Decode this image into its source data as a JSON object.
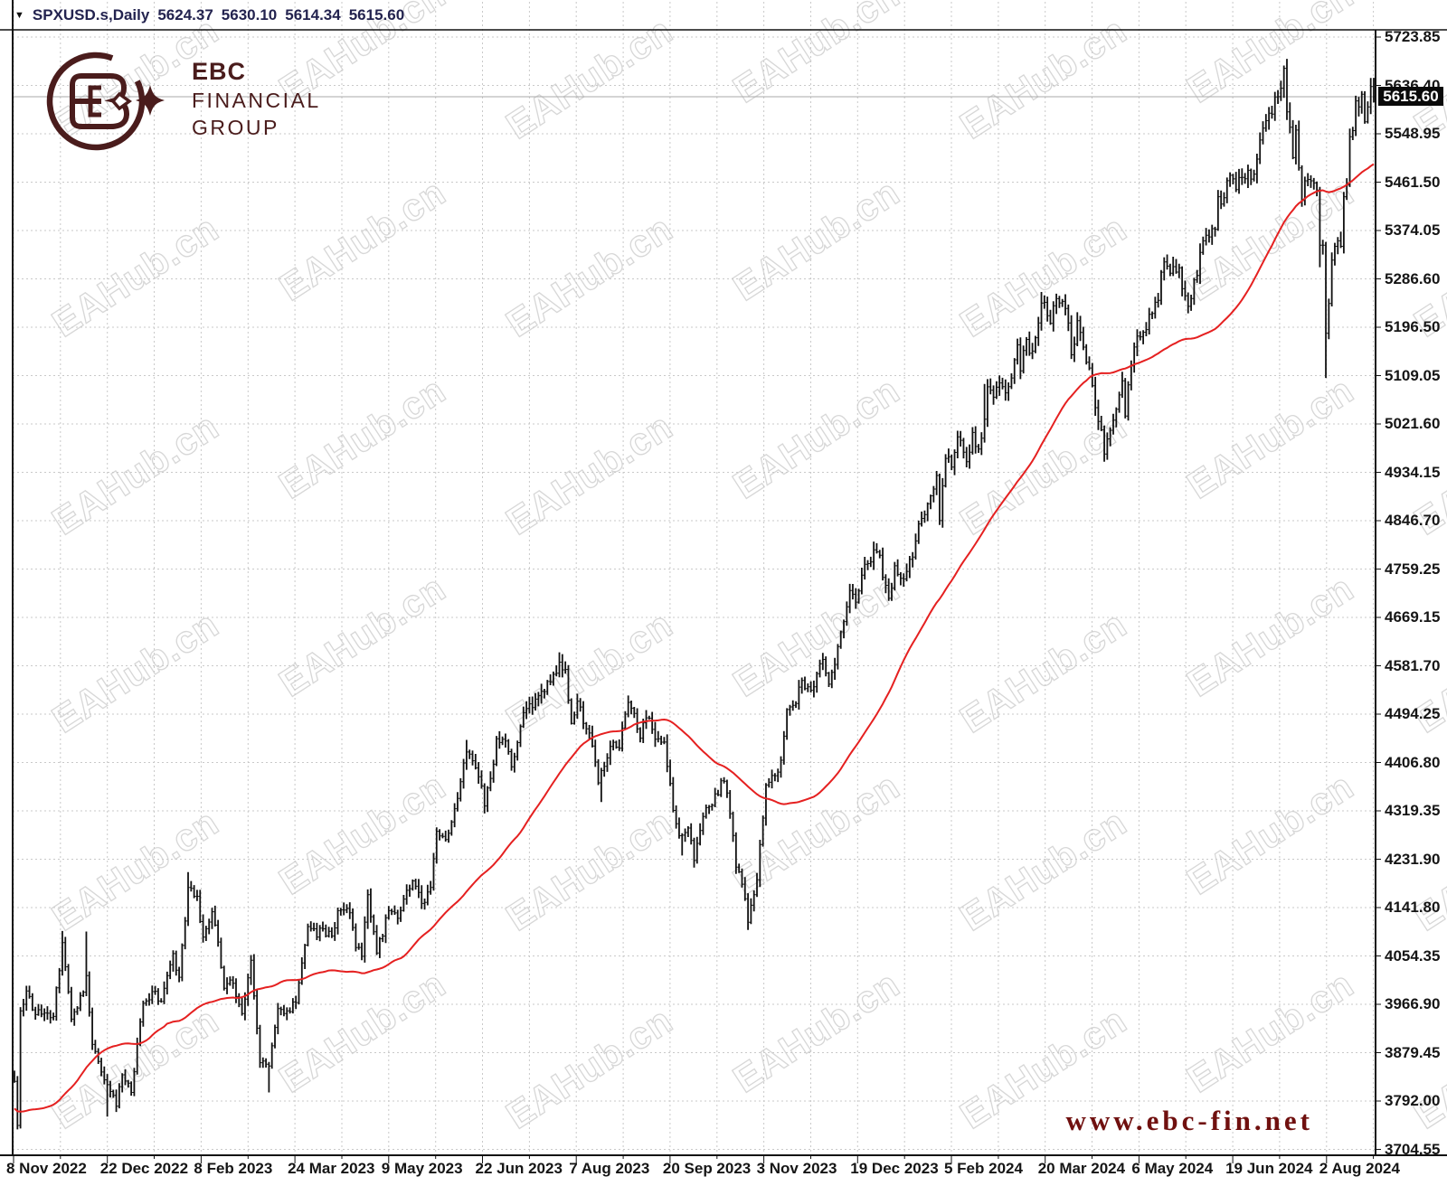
{
  "window": {
    "symbol_period": "SPXUSD.s,Daily",
    "ohlc_readout": {
      "open": "5624.37",
      "high": "5630.10",
      "low": "5614.34",
      "close": "5615.60"
    }
  },
  "branding": {
    "logo_abbr": "EBC",
    "logo_line1": "FINANCIAL",
    "logo_line2": "GROUP",
    "logo_color": "#4a1c1c",
    "website": "www.ebc-fin.net",
    "website_color": "#70100f"
  },
  "watermark": {
    "text": "EAHub.cn",
    "color": "#d7d7d7",
    "angle_deg": -33
  },
  "chart_data": {
    "type": "bar",
    "subtype": "ohlc-bars-daily",
    "title": "SPXUSD.s Daily",
    "bid_price": 5615.6,
    "bid_price_label": "5615.60",
    "bar_color": "#111111",
    "grid_color": "#c9c9c9",
    "bid_line_color": "#a9a9a9",
    "y_axis": {
      "labels": [
        "5723.85",
        "5636.40",
        "5548.95",
        "5461.50",
        "5374.05",
        "5286.60",
        "5196.50",
        "5109.05",
        "5021.60",
        "4934.15",
        "4846.70",
        "4759.25",
        "4669.15",
        "4581.70",
        "4494.25",
        "4406.80",
        "4319.35",
        "4231.90",
        "4141.80",
        "4054.35",
        "3966.90",
        "3879.45",
        "3792.00",
        "3704.55"
      ],
      "top_value": 5723.85,
      "bottom_value": 3704.55
    },
    "x_axis": {
      "labels": [
        "8 Nov 2022",
        "22 Dec 2022",
        "8 Feb 2023",
        "24 Mar 2023",
        "9 May 2023",
        "22 Jun 2023",
        "7 Aug 2023",
        "20 Sep 2023",
        "3 Nov 2023",
        "19 Dec 2023",
        "5 Feb 2024",
        "20 Mar 2024",
        "6 May 2024",
        "19 Jun 2024",
        "2 Aug 2024"
      ],
      "bars_per_tick": 31
    },
    "bars_total": 455,
    "close_anchors": [
      [
        0,
        3828
      ],
      [
        1,
        3748
      ],
      [
        2,
        3956
      ],
      [
        4,
        3992
      ],
      [
        6,
        3958
      ],
      [
        9,
        3950
      ],
      [
        13,
        3946
      ],
      [
        16,
        4080
      ],
      [
        19,
        3941
      ],
      [
        23,
        3990
      ],
      [
        24,
        4020
      ],
      [
        26,
        3895
      ],
      [
        29,
        3845
      ],
      [
        31,
        3822
      ],
      [
        34,
        3783
      ],
      [
        36,
        3840
      ],
      [
        39,
        3808
      ],
      [
        41,
        3895
      ],
      [
        43,
        3970
      ],
      [
        46,
        3991
      ],
      [
        49,
        3973
      ],
      [
        51,
        4020
      ],
      [
        53,
        4060
      ],
      [
        55,
        4017
      ],
      [
        57,
        4119
      ],
      [
        58,
        4180
      ],
      [
        61,
        4164
      ],
      [
        63,
        4090
      ],
      [
        66,
        4136
      ],
      [
        68,
        4081
      ],
      [
        70,
        3997
      ],
      [
        72,
        4012
      ],
      [
        74,
        3982
      ],
      [
        76,
        3951
      ],
      [
        79,
        4048
      ],
      [
        82,
        3862
      ],
      [
        85,
        3856
      ],
      [
        88,
        3960
      ],
      [
        90,
        3951
      ],
      [
        94,
        3971
      ],
      [
        98,
        4109
      ],
      [
        101,
        4090
      ],
      [
        103,
        4105
      ],
      [
        106,
        4092
      ],
      [
        108,
        4138
      ],
      [
        112,
        4134
      ],
      [
        114,
        4071
      ],
      [
        116,
        4055
      ],
      [
        118,
        4167
      ],
      [
        121,
        4061
      ],
      [
        125,
        4138
      ],
      [
        128,
        4124
      ],
      [
        130,
        4159
      ],
      [
        133,
        4192
      ],
      [
        136,
        4151
      ],
      [
        139,
        4180
      ],
      [
        141,
        4282
      ],
      [
        144,
        4267
      ],
      [
        146,
        4299
      ],
      [
        149,
        4372
      ],
      [
        151,
        4426
      ],
      [
        153,
        4410
      ],
      [
        155,
        4381
      ],
      [
        157,
        4328
      ],
      [
        159,
        4378
      ],
      [
        161,
        4450
      ],
      [
        164,
        4446
      ],
      [
        166,
        4399
      ],
      [
        169,
        4472
      ],
      [
        171,
        4505
      ],
      [
        174,
        4522
      ],
      [
        176,
        4536
      ],
      [
        178,
        4554
      ],
      [
        180,
        4567
      ],
      [
        182,
        4589
      ],
      [
        184,
        4576
      ],
      [
        186,
        4478
      ],
      [
        188,
        4518
      ],
      [
        191,
        4468
      ],
      [
        193,
        4437
      ],
      [
        195,
        4370
      ],
      [
        197,
        4400
      ],
      [
        199,
        4436
      ],
      [
        202,
        4433
      ],
      [
        205,
        4516
      ],
      [
        207,
        4496
      ],
      [
        209,
        4451
      ],
      [
        211,
        4488
      ],
      [
        213,
        4467
      ],
      [
        215,
        4450
      ],
      [
        217,
        4444
      ],
      [
        220,
        4320
      ],
      [
        222,
        4274
      ],
      [
        223,
        4275
      ],
      [
        225,
        4288
      ],
      [
        227,
        4229
      ],
      [
        230,
        4309
      ],
      [
        232,
        4327
      ],
      [
        234,
        4350
      ],
      [
        237,
        4373
      ],
      [
        239,
        4314
      ],
      [
        241,
        4217
      ],
      [
        243,
        4186
      ],
      [
        245,
        4117
      ],
      [
        247,
        4167
      ],
      [
        248,
        4194
      ],
      [
        251,
        4366
      ],
      [
        254,
        4383
      ],
      [
        256,
        4411
      ],
      [
        258,
        4503
      ],
      [
        261,
        4514
      ],
      [
        263,
        4556
      ],
      [
        266,
        4538
      ],
      [
        268,
        4568
      ],
      [
        270,
        4594
      ],
      [
        272,
        4549
      ],
      [
        274,
        4585
      ],
      [
        276,
        4644
      ],
      [
        279,
        4719
      ],
      [
        281,
        4698
      ],
      [
        283,
        4747
      ],
      [
        285,
        4768
      ],
      [
        287,
        4793
      ],
      [
        289,
        4783
      ],
      [
        290,
        4743
      ],
      [
        292,
        4705
      ],
      [
        294,
        4764
      ],
      [
        297,
        4740
      ],
      [
        300,
        4780
      ],
      [
        302,
        4840
      ],
      [
        303,
        4850
      ],
      [
        306,
        4891
      ],
      [
        308,
        4928
      ],
      [
        309,
        4846
      ],
      [
        311,
        4959
      ],
      [
        313,
        4943
      ],
      [
        315,
        4998
      ],
      [
        318,
        4953
      ],
      [
        320,
        5006
      ],
      [
        322,
        4976
      ],
      [
        324,
        5030
      ],
      [
        325,
        5089
      ],
      [
        327,
        5070
      ],
      [
        329,
        5096
      ],
      [
        331,
        5078
      ],
      [
        333,
        5105
      ],
      [
        335,
        5165
      ],
      [
        336,
        5118
      ],
      [
        338,
        5175
      ],
      [
        339,
        5150
      ],
      [
        341,
        5178
      ],
      [
        343,
        5241
      ],
      [
        345,
        5218
      ],
      [
        346,
        5204
      ],
      [
        348,
        5249
      ],
      [
        350,
        5244
      ],
      [
        352,
        5205
      ],
      [
        353,
        5147
      ],
      [
        355,
        5209
      ],
      [
        357,
        5161
      ],
      [
        359,
        5123
      ],
      [
        361,
        5051
      ],
      [
        363,
        5011
      ],
      [
        364,
        4967
      ],
      [
        366,
        5010
      ],
      [
        368,
        5048
      ],
      [
        370,
        5100
      ],
      [
        371,
        5036
      ],
      [
        373,
        5127
      ],
      [
        375,
        5181
      ],
      [
        377,
        5188
      ],
      [
        380,
        5222
      ],
      [
        382,
        5246
      ],
      [
        383,
        5297
      ],
      [
        385,
        5308
      ],
      [
        387,
        5307
      ],
      [
        389,
        5305
      ],
      [
        390,
        5267
      ],
      [
        392,
        5235
      ],
      [
        394,
        5283
      ],
      [
        395,
        5291
      ],
      [
        397,
        5354
      ],
      [
        399,
        5361
      ],
      [
        401,
        5375
      ],
      [
        402,
        5434
      ],
      [
        404,
        5432
      ],
      [
        406,
        5473
      ],
      [
        408,
        5447
      ],
      [
        410,
        5469
      ],
      [
        412,
        5482
      ],
      [
        414,
        5475
      ],
      [
        416,
        5537
      ],
      [
        418,
        5572
      ],
      [
        420,
        5584
      ],
      [
        421,
        5615
      ],
      [
        423,
        5631
      ],
      [
        424,
        5667
      ],
      [
        425,
        5588
      ],
      [
        427,
        5505
      ],
      [
        428,
        5555
      ],
      [
        430,
        5427
      ],
      [
        431,
        5463
      ],
      [
        433,
        5463
      ],
      [
        435,
        5446
      ],
      [
        436,
        5346
      ],
      [
        437,
        5346
      ],
      [
        438,
        5186
      ],
      [
        439,
        5240
      ],
      [
        440,
        5319
      ],
      [
        441,
        5344
      ],
      [
        442,
        5354
      ],
      [
        443,
        5344
      ],
      [
        444,
        5434
      ],
      [
        445,
        5455
      ],
      [
        446,
        5543
      ],
      [
        447,
        5554
      ],
      [
        448,
        5608
      ],
      [
        449,
        5597
      ],
      [
        450,
        5620
      ],
      [
        451,
        5570
      ],
      [
        452,
        5597
      ],
      [
        453,
        5634
      ],
      [
        454,
        5615.6
      ]
    ],
    "high_overrides": {
      "16": 4101,
      "24": 4100,
      "58": 4208,
      "151": 4448,
      "182": 4607,
      "287": 4793,
      "324": 5094,
      "343": 5261,
      "387": 5325,
      "424": 5669,
      "448": 5614,
      "453": 5636,
      "454": 5630
    },
    "low_overrides": {
      "1": 3744,
      "31": 3764,
      "34": 3780,
      "85": 3808,
      "196": 4335,
      "223": 4238,
      "227": 4216,
      "245": 4103,
      "364": 4953,
      "436": 5306,
      "438": 5105
    },
    "moving_average": {
      "type": "SMA",
      "period": 50,
      "color": "#e52020",
      "prehistory_anchors": [
        [
          0,
          4030
        ],
        [
          3,
          3955
        ],
        [
          5,
          3908
        ],
        [
          8,
          3933
        ],
        [
          11,
          3873
        ],
        [
          15,
          3790
        ],
        [
          19,
          3693
        ],
        [
          22,
          3585
        ],
        [
          25,
          3640
        ],
        [
          27,
          3577
        ],
        [
          31,
          3678
        ],
        [
          34,
          3720
        ],
        [
          38,
          3808
        ],
        [
          41,
          3901
        ],
        [
          44,
          3830
        ],
        [
          46,
          3720
        ],
        [
          48,
          3770
        ],
        [
          49,
          3806
        ]
      ]
    },
    "noise": {
      "seed": 9,
      "range_frac": 0.0032,
      "close_frac": 0.005
    }
  }
}
